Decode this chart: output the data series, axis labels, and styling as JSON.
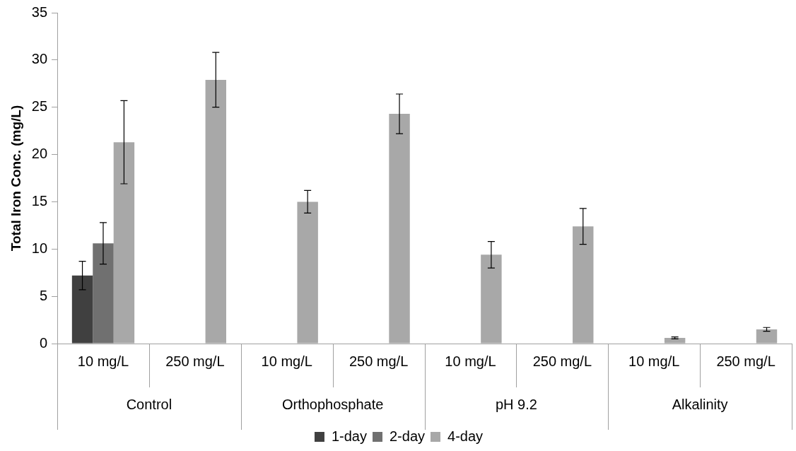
{
  "chart_data": {
    "type": "bar",
    "ylabel": "Total Iron Conc. (mg/L)",
    "categories": [
      "10 mg/L",
      "250 mg/L",
      "10 mg/L",
      "250 mg/L",
      "10 mg/L",
      "250 mg/L",
      "10 mg/L",
      "250 mg/L"
    ],
    "annotations": [
      "Control",
      "Orthophosphate",
      "pH 9.2",
      "Alkalinity"
    ],
    "series": [
      {
        "name": "1-day",
        "color": "#404040",
        "values": [
          7.2,
          null,
          null,
          null,
          null,
          null,
          null,
          null
        ],
        "errors": [
          1.5,
          null,
          null,
          null,
          null,
          null,
          null,
          null
        ]
      },
      {
        "name": "2-day",
        "color": "#707070",
        "values": [
          10.6,
          null,
          null,
          null,
          null,
          null,
          null,
          null
        ],
        "errors": [
          2.2,
          null,
          null,
          null,
          null,
          null,
          null,
          null
        ]
      },
      {
        "name": "4-day",
        "color": "#a8a8a8",
        "values": [
          21.3,
          27.9,
          15.0,
          24.3,
          9.4,
          12.4,
          0.6,
          1.5
        ],
        "errors": [
          4.4,
          2.9,
          1.2,
          2.1,
          1.4,
          1.9,
          0.1,
          0.2
        ]
      }
    ],
    "ylim": [
      0,
      35
    ],
    "yticks": [
      0,
      5,
      10,
      15,
      20,
      25,
      30,
      35
    ],
    "grid": false,
    "legend": "bottom"
  }
}
